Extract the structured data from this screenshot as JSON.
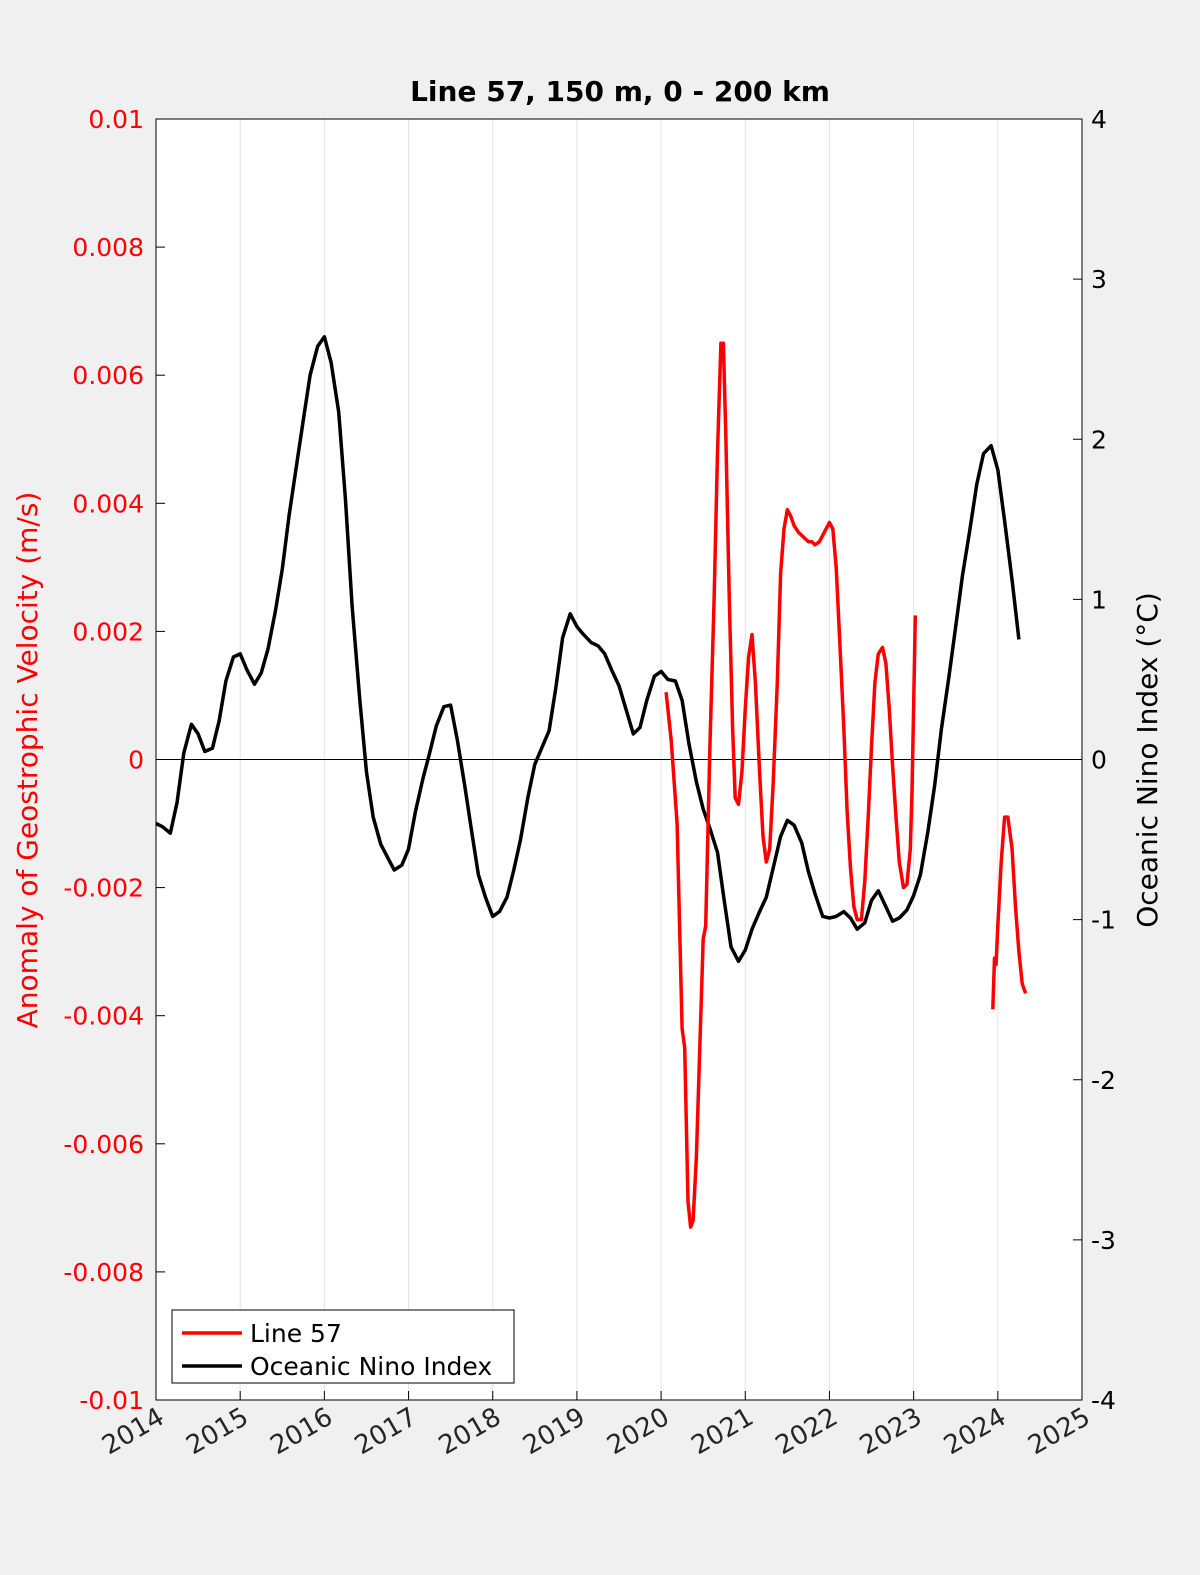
{
  "chart_data": {
    "type": "line",
    "title": "Line 57, 150 m, 0 - 200 km",
    "xlabel": "",
    "ylabel_left": "Anomaly of Geostrophic Velocity (m/s)",
    "ylabel_right": "Oceanic Nino Index (°C)",
    "xlim": [
      2014,
      2025
    ],
    "ylim_left": [
      -0.01,
      0.01
    ],
    "ylim_right": [
      -4,
      4
    ],
    "x_ticks": [
      2014,
      2015,
      2016,
      2017,
      2018,
      2019,
      2020,
      2021,
      2022,
      2023,
      2024,
      2025
    ],
    "x_tick_labels": [
      "2014",
      "2015",
      "2016",
      "2017",
      "2018",
      "2019",
      "2020",
      "2021",
      "2022",
      "2023",
      "2024",
      "2025"
    ],
    "y_left_ticks": [
      0.01,
      0.008,
      0.006,
      0.004,
      0.002,
      0,
      -0.002,
      -0.004,
      -0.006,
      -0.008,
      -0.01
    ],
    "y_left_tick_labels": [
      "0.01",
      "0.008",
      "0.006",
      "0.004",
      "0.002",
      "0",
      "-0.002",
      "-0.004",
      "-0.006",
      "-0.008",
      "-0.01"
    ],
    "y_right_ticks": [
      4,
      3,
      2,
      1,
      0,
      -1,
      -2,
      -3,
      -4
    ],
    "y_right_tick_labels": [
      "4",
      "3",
      "2",
      "1",
      "0",
      "-1",
      "-2",
      "-3",
      "-4"
    ],
    "grid": "vertical",
    "zero_line": true,
    "legend_position": "bottom-left",
    "colors": {
      "line57": "#ff0000",
      "oni": "#000000",
      "left_axis": "#ff0000",
      "right_axis": "#000000",
      "background": "#f0f0f0",
      "plot_area": "#ffffff"
    },
    "series": [
      {
        "name": "Line 57",
        "axis": "left",
        "color": "#ff0000",
        "segments": [
          [
            [
              2020.06,
              0.00105
            ],
            [
              2020.12,
              0.0003
            ],
            [
              2020.19,
              -0.001
            ],
            [
              2020.25,
              -0.0042
            ],
            [
              2020.28,
              -0.0045
            ],
            [
              2020.32,
              -0.0069
            ],
            [
              2020.35,
              -0.0073
            ],
            [
              2020.38,
              -0.0072
            ],
            [
              2020.42,
              -0.0062
            ],
            [
              2020.46,
              -0.0045
            ],
            [
              2020.5,
              -0.0028
            ],
            [
              2020.53,
              -0.0026
            ],
            [
              2020.58,
              0.0002
            ],
            [
              2020.63,
              0.0025
            ],
            [
              2020.67,
              0.0048
            ],
            [
              2020.71,
              0.0065
            ],
            [
              2020.74,
              0.0065
            ],
            [
              2020.77,
              0.005
            ],
            [
              2020.81,
              0.0025
            ],
            [
              2020.85,
              0.0005
            ],
            [
              2020.88,
              -0.0006
            ],
            [
              2020.92,
              -0.0007
            ],
            [
              2020.96,
              -0.0002
            ],
            [
              2021.0,
              0.0008
            ],
            [
              2021.04,
              0.0016
            ],
            [
              2021.08,
              0.00195
            ],
            [
              2021.12,
              0.0012
            ],
            [
              2021.17,
              -0.0002
            ],
            [
              2021.21,
              -0.0012
            ],
            [
              2021.25,
              -0.0016
            ],
            [
              2021.29,
              -0.0014
            ],
            [
              2021.33,
              -0.0004
            ],
            [
              2021.38,
              0.0012
            ],
            [
              2021.42,
              0.0029
            ],
            [
              2021.46,
              0.0036
            ],
            [
              2021.5,
              0.0039
            ],
            [
              2021.54,
              0.0038
            ],
            [
              2021.58,
              0.00365
            ],
            [
              2021.63,
              0.00355
            ],
            [
              2021.67,
              0.0035
            ],
            [
              2021.71,
              0.00345
            ],
            [
              2021.75,
              0.0034
            ],
            [
              2021.79,
              0.0034
            ],
            [
              2021.83,
              0.00335
            ],
            [
              2021.88,
              0.0034
            ],
            [
              2021.92,
              0.0035
            ],
            [
              2021.96,
              0.0036
            ],
            [
              2022.0,
              0.0037
            ],
            [
              2022.04,
              0.0036
            ],
            [
              2022.08,
              0.003
            ],
            [
              2022.12,
              0.0019
            ],
            [
              2022.17,
              0.0005
            ],
            [
              2022.21,
              -0.0008
            ],
            [
              2022.25,
              -0.0017
            ],
            [
              2022.29,
              -0.0023
            ],
            [
              2022.33,
              -0.0025
            ],
            [
              2022.38,
              -0.0025
            ],
            [
              2022.42,
              -0.0019
            ],
            [
              2022.46,
              -0.0009
            ],
            [
              2022.5,
              0.0002
            ],
            [
              2022.54,
              0.0012
            ],
            [
              2022.58,
              0.00165
            ],
            [
              2022.63,
              0.00175
            ],
            [
              2022.67,
              0.0015
            ],
            [
              2022.71,
              0.0008
            ],
            [
              2022.75,
              -0.0001
            ],
            [
              2022.79,
              -0.0009
            ],
            [
              2022.83,
              -0.0016
            ],
            [
              2022.88,
              -0.002
            ],
            [
              2022.92,
              -0.00195
            ],
            [
              2022.96,
              -0.0014
            ],
            [
              2022.98,
              -0.0005
            ],
            [
              2023.0,
              0.0008
            ],
            [
              2023.02,
              0.00225
            ]
          ],
          [
            [
              2023.94,
              -0.0039
            ],
            [
              2023.96,
              -0.0031
            ],
            [
              2023.98,
              -0.0032
            ],
            [
              2024.0,
              -0.0026
            ],
            [
              2024.04,
              -0.0016
            ],
            [
              2024.08,
              -0.0009
            ],
            [
              2024.12,
              -0.0009
            ],
            [
              2024.17,
              -0.0014
            ],
            [
              2024.21,
              -0.0023
            ],
            [
              2024.25,
              -0.003
            ],
            [
              2024.29,
              -0.0035
            ],
            [
              2024.33,
              -0.00365
            ]
          ]
        ]
      },
      {
        "name": "Oceanic Nino Index",
        "axis": "right",
        "color": "#000000",
        "x": [
          2014.0,
          2014.08,
          2014.17,
          2014.25,
          2014.33,
          2014.42,
          2014.5,
          2014.58,
          2014.67,
          2014.75,
          2014.83,
          2014.92,
          2015.0,
          2015.08,
          2015.17,
          2015.25,
          2015.33,
          2015.42,
          2015.5,
          2015.58,
          2015.67,
          2015.75,
          2015.83,
          2015.92,
          2016.0,
          2016.08,
          2016.17,
          2016.25,
          2016.33,
          2016.42,
          2016.5,
          2016.58,
          2016.67,
          2016.75,
          2016.83,
          2016.92,
          2017.0,
          2017.08,
          2017.17,
          2017.25,
          2017.33,
          2017.42,
          2017.5,
          2017.58,
          2017.67,
          2017.75,
          2017.83,
          2017.92,
          2018.0,
          2018.08,
          2018.17,
          2018.25,
          2018.33,
          2018.42,
          2018.5,
          2018.58,
          2018.67,
          2018.75,
          2018.83,
          2018.92,
          2019.0,
          2019.08,
          2019.17,
          2019.25,
          2019.33,
          2019.42,
          2019.5,
          2019.58,
          2019.67,
          2019.75,
          2019.83,
          2019.92,
          2020.0,
          2020.08,
          2020.17,
          2020.25,
          2020.33,
          2020.42,
          2020.5,
          2020.58,
          2020.67,
          2020.75,
          2020.83,
          2020.92,
          2021.0,
          2021.08,
          2021.17,
          2021.25,
          2021.33,
          2021.42,
          2021.5,
          2021.58,
          2021.67,
          2021.75,
          2021.83,
          2021.92,
          2022.0,
          2022.08,
          2022.17,
          2022.25,
          2022.33,
          2022.42,
          2022.5,
          2022.58,
          2022.67,
          2022.75,
          2022.83,
          2022.92,
          2023.0,
          2023.08,
          2023.17,
          2023.25,
          2023.33,
          2023.42,
          2023.5,
          2023.58,
          2023.67,
          2023.75,
          2023.83,
          2023.92,
          2024.0,
          2024.08,
          2024.17,
          2024.25
        ],
        "y": [
          -0.4,
          -0.42,
          -0.46,
          -0.27,
          0.04,
          0.22,
          0.16,
          0.05,
          0.07,
          0.24,
          0.49,
          0.64,
          0.66,
          0.56,
          0.47,
          0.54,
          0.69,
          0.93,
          1.19,
          1.52,
          1.84,
          2.12,
          2.4,
          2.58,
          2.64,
          2.48,
          2.17,
          1.63,
          0.96,
          0.38,
          -0.08,
          -0.36,
          -0.53,
          -0.61,
          -0.69,
          -0.66,
          -0.56,
          -0.33,
          -0.12,
          0.04,
          0.21,
          0.33,
          0.34,
          0.12,
          -0.17,
          -0.45,
          -0.72,
          -0.87,
          -0.98,
          -0.95,
          -0.86,
          -0.69,
          -0.5,
          -0.23,
          -0.03,
          0.07,
          0.18,
          0.45,
          0.76,
          0.91,
          0.83,
          0.78,
          0.73,
          0.71,
          0.66,
          0.55,
          0.46,
          0.32,
          0.16,
          0.2,
          0.37,
          0.52,
          0.55,
          0.5,
          0.49,
          0.37,
          0.1,
          -0.14,
          -0.31,
          -0.43,
          -0.58,
          -0.88,
          -1.17,
          -1.26,
          -1.19,
          -1.06,
          -0.95,
          -0.86,
          -0.68,
          -0.48,
          -0.38,
          -0.41,
          -0.52,
          -0.7,
          -0.84,
          -0.98,
          -0.99,
          -0.98,
          -0.95,
          -0.99,
          -1.06,
          -1.02,
          -0.88,
          -0.82,
          -0.92,
          -1.01,
          -0.99,
          -0.94,
          -0.85,
          -0.72,
          -0.45,
          -0.16,
          0.19,
          0.52,
          0.83,
          1.15,
          1.44,
          1.72,
          1.91,
          1.96,
          1.81,
          1.49,
          1.12,
          0.75
        ]
      }
    ]
  }
}
